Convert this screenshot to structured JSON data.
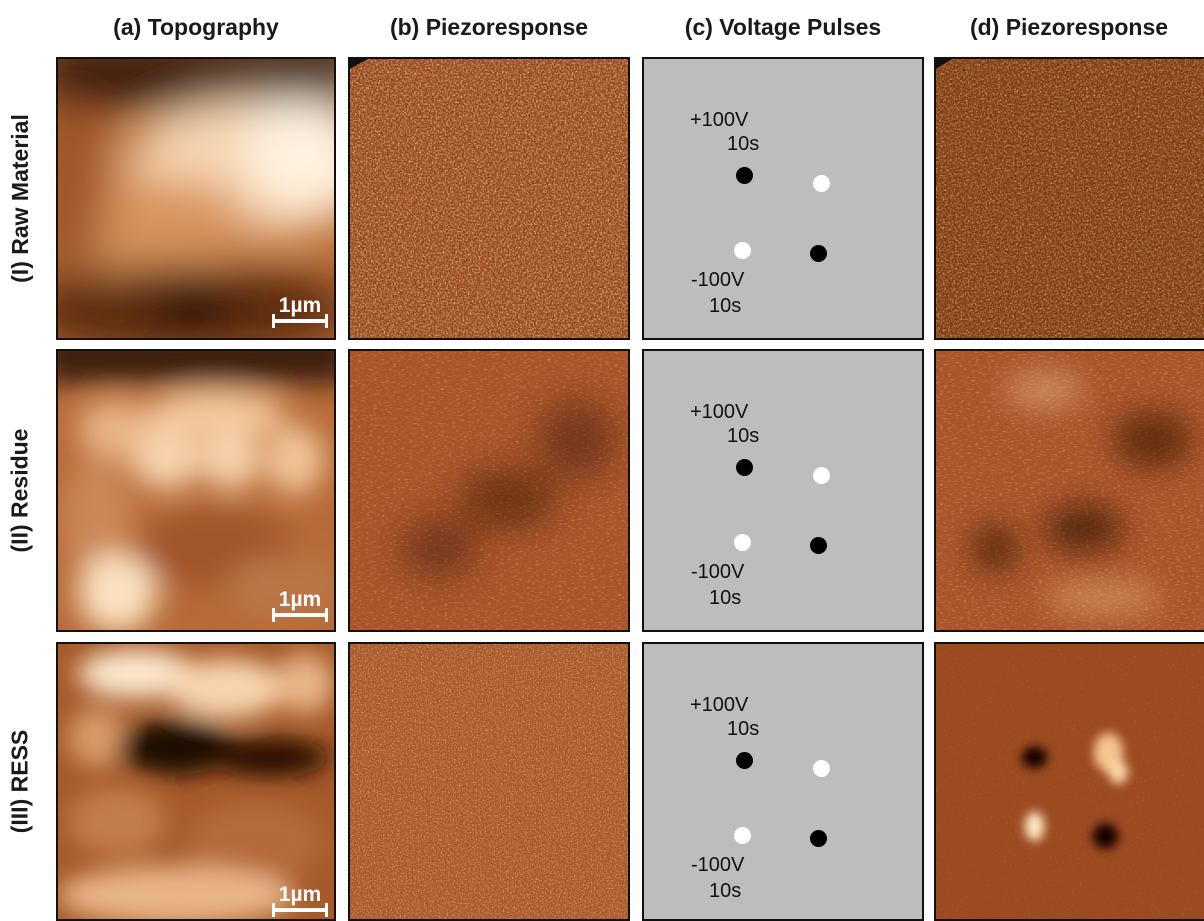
{
  "columns": [
    {
      "id": "a",
      "label": "(a) Topography"
    },
    {
      "id": "b",
      "label": "(b) Piezoresponse"
    },
    {
      "id": "c",
      "label": "(c) Voltage Pulses"
    },
    {
      "id": "d",
      "label": "(d) Piezoresponse"
    }
  ],
  "rows": [
    {
      "id": "I",
      "label": "(I) Raw Material"
    },
    {
      "id": "II",
      "label": "(II) Residue"
    },
    {
      "id": "III",
      "label": "(III) RESS"
    }
  ],
  "scale_bar": {
    "label": "1µm"
  },
  "pulses": {
    "positive": {
      "voltage": "+100V",
      "duration": "10s",
      "dot_color": "#000000"
    },
    "negative": {
      "voltage": "-100V",
      "duration": "10s",
      "dot_color": "#ffffff"
    }
  },
  "colors": {
    "panel_border": "#111111",
    "pulse_background": "#bdbdbd",
    "piezo_base": "#a04a20"
  }
}
